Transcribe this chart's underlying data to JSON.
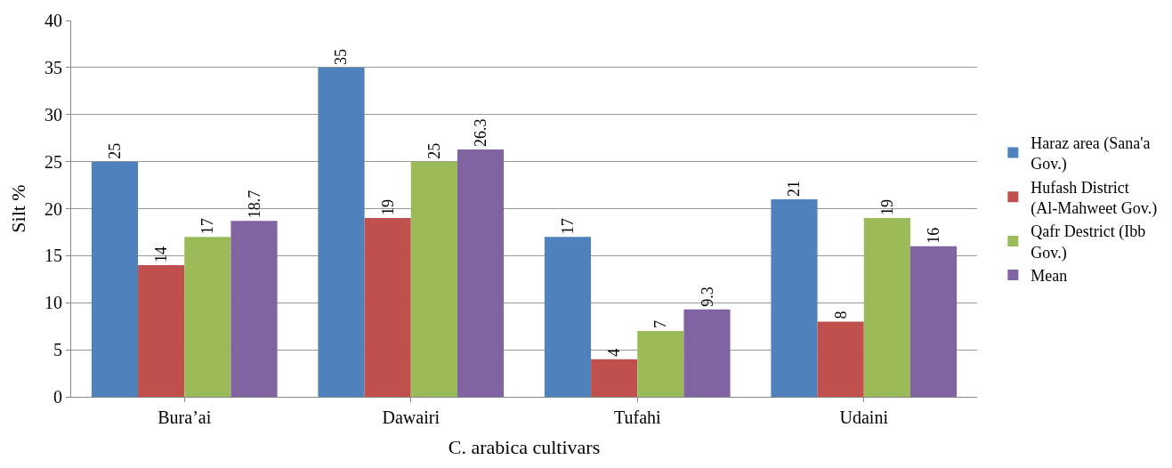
{
  "chart_data": {
    "type": "bar",
    "xlabel": "C. arabica cultivars",
    "ylabel": "Silt %",
    "categories": [
      "Bura’ai",
      "Dawairi",
      "Tufahi",
      "Udaini"
    ],
    "series": [
      {
        "name": "Haraz area (Sana'a Gov.)",
        "color": "#4f81bd",
        "values": [
          25,
          35,
          17,
          21
        ]
      },
      {
        "name": "Hufash District (Al-Mahweet Gov.)",
        "color": "#c0504d",
        "values": [
          14,
          19,
          4,
          8
        ]
      },
      {
        "name": "Qafr Destrict (Ibb Gov.)",
        "color": "#9bbb59",
        "values": [
          17,
          25,
          7,
          19
        ]
      },
      {
        "name": "Mean",
        "color": "#8064a2",
        "values": [
          18.7,
          26.3,
          9.3,
          16
        ]
      }
    ],
    "ylim": [
      0,
      40
    ],
    "yticks": [
      0,
      5,
      10,
      15,
      20,
      25,
      30,
      35,
      40
    ],
    "grid": "y",
    "legend": "right",
    "data_labels": true
  }
}
